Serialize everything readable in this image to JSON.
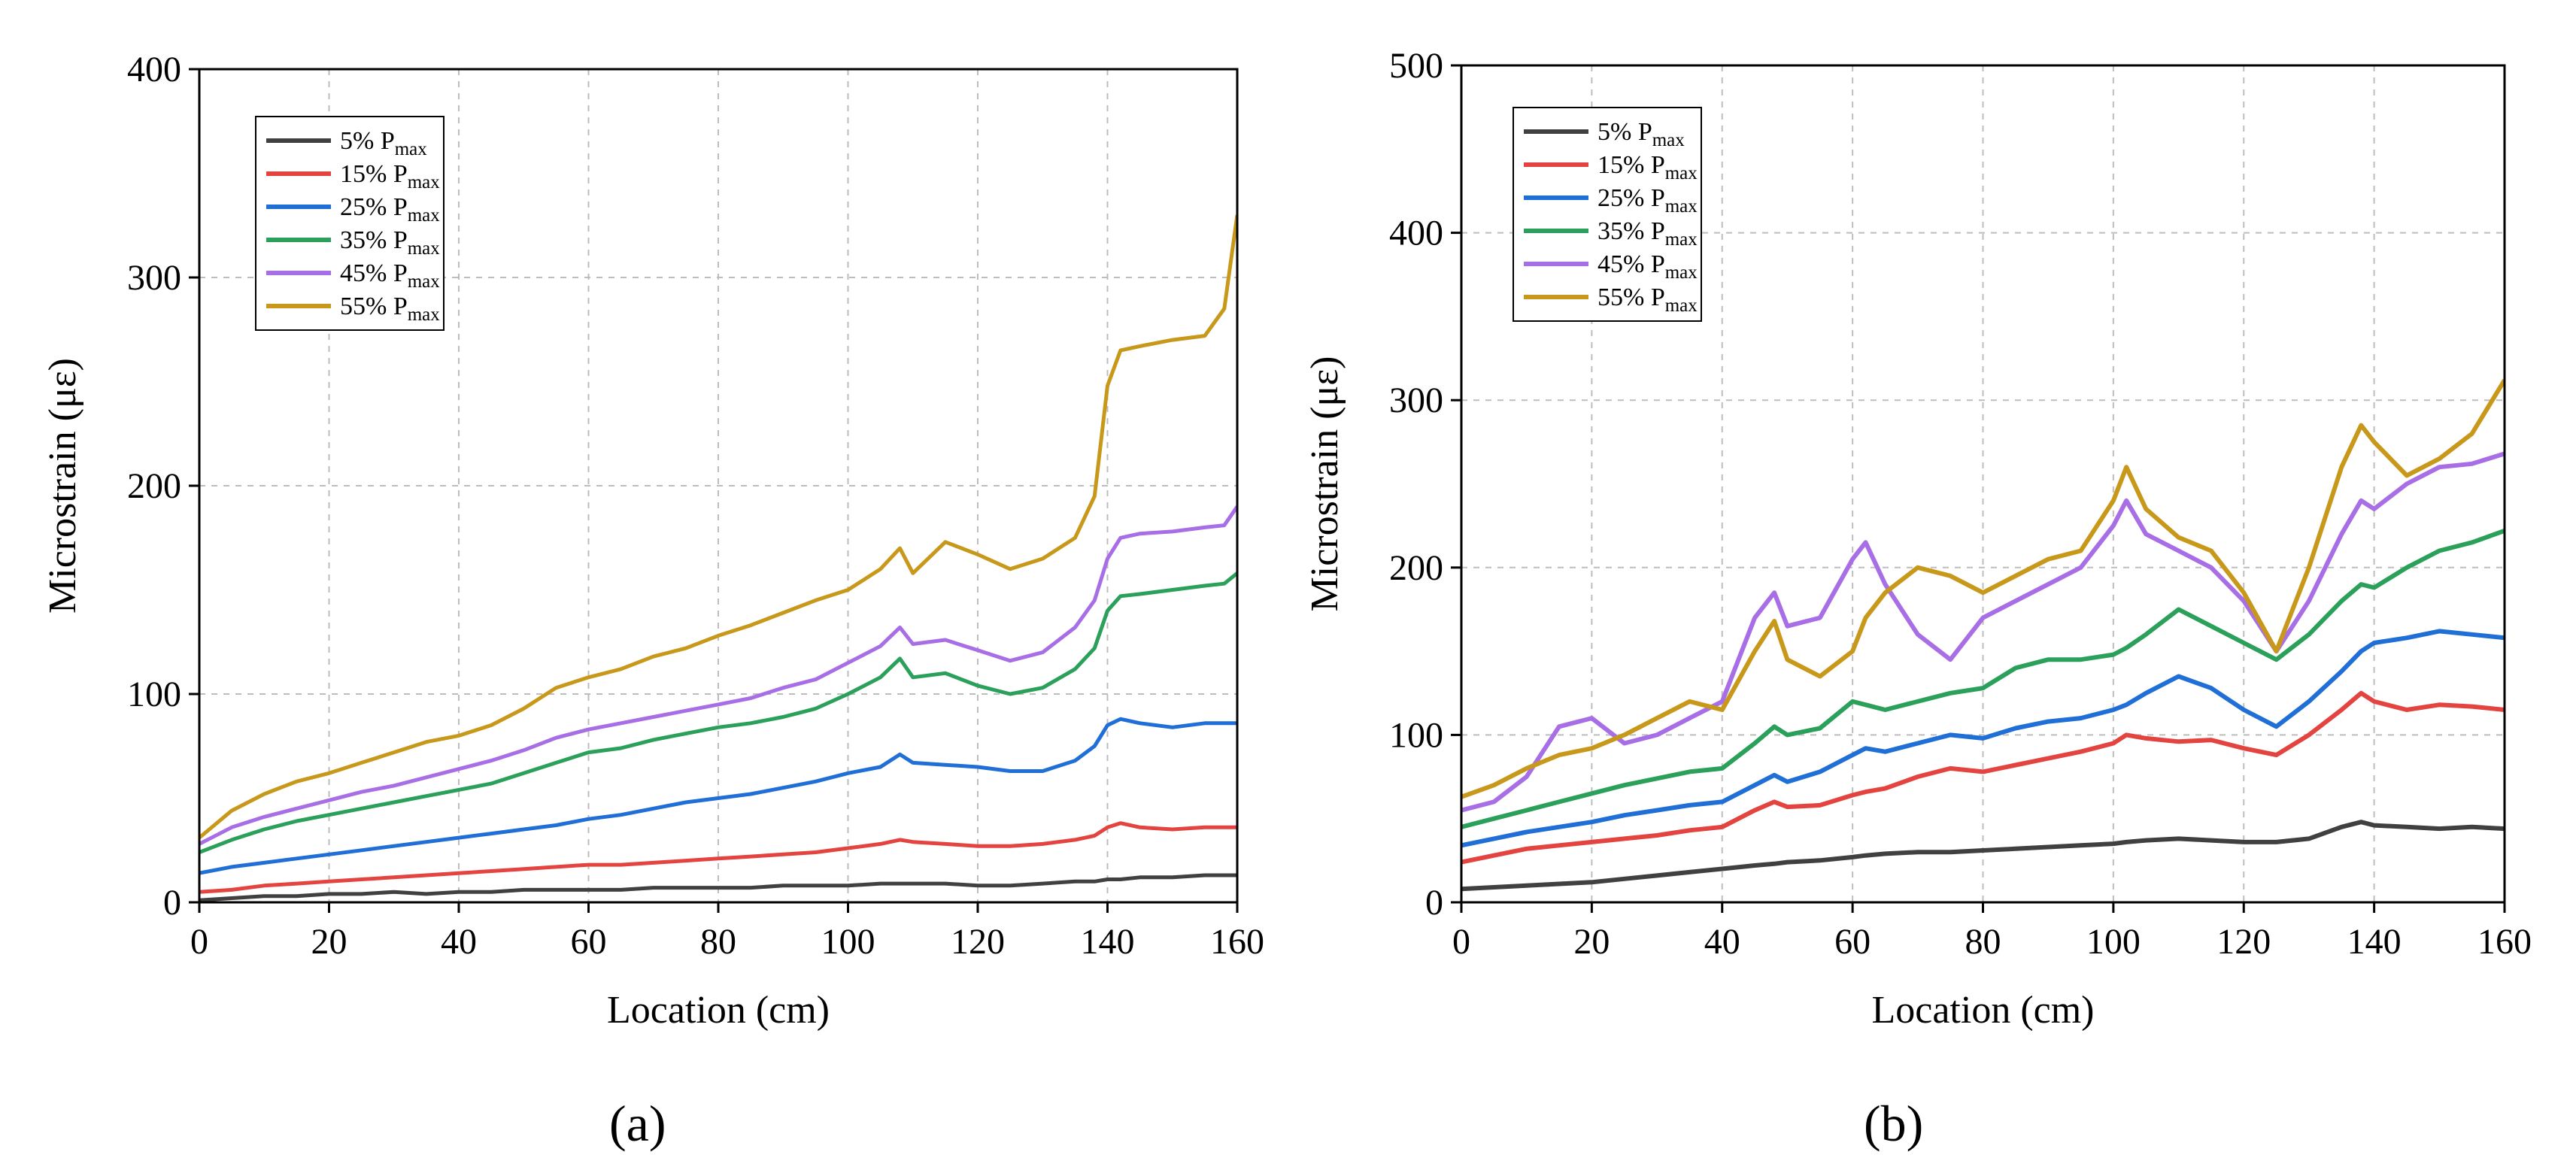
{
  "figure": {
    "panel_labels": [
      "(a)",
      "(b)"
    ]
  },
  "chart_data": [
    {
      "type": "line",
      "panel": "(a)",
      "title": "",
      "xlabel": "Location (cm)",
      "ylabel": "Microstrain (με)",
      "xlim": [
        0,
        160
      ],
      "ylim": [
        0,
        400
      ],
      "xticks": [
        0,
        20,
        40,
        60,
        80,
        100,
        120,
        140,
        160
      ],
      "yticks": [
        0,
        100,
        200,
        300,
        400
      ],
      "grid": true,
      "legend_position": "top-left",
      "x": [
        0,
        5,
        10,
        15,
        20,
        25,
        30,
        35,
        40,
        45,
        50,
        55,
        60,
        65,
        70,
        75,
        80,
        85,
        90,
        95,
        100,
        105,
        108,
        110,
        115,
        120,
        125,
        130,
        135,
        138,
        140,
        142,
        145,
        150,
        155,
        158,
        160
      ],
      "series": [
        {
          "name": "5% P",
          "subscript": "max",
          "color": "#404040",
          "values": [
            1,
            2,
            3,
            3,
            4,
            4,
            5,
            4,
            5,
            5,
            6,
            6,
            6,
            6,
            7,
            7,
            7,
            7,
            8,
            8,
            8,
            9,
            9,
            9,
            9,
            8,
            8,
            9,
            10,
            10,
            11,
            11,
            12,
            12,
            13,
            13,
            13
          ]
        },
        {
          "name": "15% P",
          "subscript": "max",
          "color": "#e3443f",
          "values": [
            5,
            6,
            8,
            9,
            10,
            11,
            12,
            13,
            14,
            15,
            16,
            17,
            18,
            18,
            19,
            20,
            21,
            22,
            23,
            24,
            26,
            28,
            30,
            29,
            28,
            27,
            27,
            28,
            30,
            32,
            36,
            38,
            36,
            35,
            36,
            36,
            36
          ]
        },
        {
          "name": "25% P",
          "subscript": "max",
          "color": "#1f6fd6",
          "values": [
            14,
            17,
            19,
            21,
            23,
            25,
            27,
            29,
            31,
            33,
            35,
            37,
            40,
            42,
            45,
            48,
            50,
            52,
            55,
            58,
            62,
            65,
            71,
            67,
            66,
            65,
            63,
            63,
            68,
            75,
            85,
            88,
            86,
            84,
            86,
            86,
            86
          ]
        },
        {
          "name": "35% P",
          "subscript": "max",
          "color": "#2aa05a",
          "values": [
            24,
            30,
            35,
            39,
            42,
            45,
            48,
            51,
            54,
            57,
            62,
            67,
            72,
            74,
            78,
            81,
            84,
            86,
            89,
            93,
            100,
            108,
            117,
            108,
            110,
            104,
            100,
            103,
            112,
            122,
            140,
            147,
            148,
            150,
            152,
            153,
            158
          ]
        },
        {
          "name": "45% P",
          "subscript": "max",
          "color": "#a86ee6",
          "values": [
            28,
            36,
            41,
            45,
            49,
            53,
            56,
            60,
            64,
            68,
            73,
            79,
            83,
            86,
            89,
            92,
            95,
            98,
            103,
            107,
            115,
            123,
            132,
            124,
            126,
            121,
            116,
            120,
            132,
            145,
            165,
            175,
            177,
            178,
            180,
            181,
            190
          ]
        },
        {
          "name": "55% P",
          "subscript": "max",
          "color": "#c8981a",
          "values": [
            31,
            44,
            52,
            58,
            62,
            67,
            72,
            77,
            80,
            85,
            93,
            103,
            108,
            112,
            118,
            122,
            128,
            133,
            139,
            145,
            150,
            160,
            170,
            158,
            173,
            167,
            160,
            165,
            175,
            195,
            248,
            265,
            267,
            270,
            272,
            285,
            330
          ]
        }
      ]
    },
    {
      "type": "line",
      "panel": "(b)",
      "title": "",
      "xlabel": "Location (cm)",
      "ylabel": "Microstrain (με)",
      "xlim": [
        0,
        160
      ],
      "ylim": [
        0,
        500
      ],
      "xticks": [
        0,
        20,
        40,
        60,
        80,
        100,
        120,
        140,
        160
      ],
      "yticks": [
        0,
        100,
        200,
        300,
        400,
        500
      ],
      "grid": true,
      "legend_position": "top-left",
      "x": [
        0,
        5,
        10,
        15,
        20,
        25,
        30,
        35,
        40,
        45,
        48,
        50,
        55,
        60,
        62,
        65,
        70,
        75,
        80,
        85,
        90,
        95,
        100,
        102,
        105,
        110,
        115,
        120,
        125,
        130,
        135,
        138,
        140,
        145,
        150,
        155,
        160
      ],
      "series": [
        {
          "name": "5% P",
          "subscript": "max",
          "color": "#404040",
          "values": [
            8,
            9,
            10,
            11,
            12,
            14,
            16,
            18,
            20,
            22,
            23,
            24,
            25,
            27,
            28,
            29,
            30,
            30,
            31,
            32,
            33,
            34,
            35,
            36,
            37,
            38,
            37,
            36,
            36,
            38,
            45,
            48,
            46,
            45,
            44,
            45,
            44
          ]
        },
        {
          "name": "15% P",
          "subscript": "max",
          "color": "#e3443f",
          "values": [
            24,
            28,
            32,
            34,
            36,
            38,
            40,
            43,
            45,
            55,
            60,
            57,
            58,
            64,
            66,
            68,
            75,
            80,
            78,
            82,
            86,
            90,
            95,
            100,
            98,
            96,
            97,
            92,
            88,
            100,
            115,
            125,
            120,
            115,
            118,
            117,
            115
          ]
        },
        {
          "name": "25% P",
          "subscript": "max",
          "color": "#1f6fd6",
          "values": [
            34,
            38,
            42,
            45,
            48,
            52,
            55,
            58,
            60,
            70,
            76,
            72,
            78,
            88,
            92,
            90,
            95,
            100,
            98,
            104,
            108,
            110,
            115,
            118,
            125,
            135,
            128,
            115,
            105,
            120,
            138,
            150,
            155,
            158,
            162,
            160,
            158
          ]
        },
        {
          "name": "35% P",
          "subscript": "max",
          "color": "#2aa05a",
          "values": [
            45,
            50,
            55,
            60,
            65,
            70,
            74,
            78,
            80,
            95,
            105,
            100,
            104,
            120,
            118,
            115,
            120,
            125,
            128,
            140,
            145,
            145,
            148,
            152,
            160,
            175,
            165,
            155,
            145,
            160,
            180,
            190,
            188,
            200,
            210,
            215,
            222
          ]
        },
        {
          "name": "45% P",
          "subscript": "max",
          "color": "#a86ee6",
          "values": [
            55,
            60,
            75,
            105,
            110,
            95,
            100,
            110,
            120,
            170,
            185,
            165,
            170,
            205,
            215,
            190,
            160,
            145,
            170,
            180,
            190,
            200,
            225,
            240,
            220,
            210,
            200,
            180,
            150,
            180,
            220,
            240,
            235,
            250,
            260,
            262,
            268
          ]
        },
        {
          "name": "55% P",
          "subscript": "max",
          "color": "#c8981a",
          "values": [
            63,
            70,
            80,
            88,
            92,
            100,
            110,
            120,
            115,
            150,
            168,
            145,
            135,
            150,
            170,
            185,
            200,
            195,
            185,
            195,
            205,
            210,
            240,
            260,
            235,
            218,
            210,
            185,
            150,
            200,
            260,
            285,
            275,
            255,
            265,
            280,
            312
          ]
        }
      ]
    }
  ]
}
